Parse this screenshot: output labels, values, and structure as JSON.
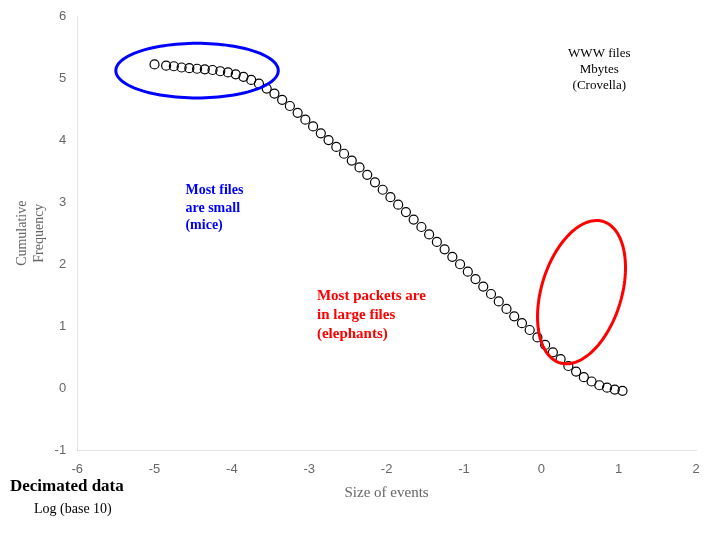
{
  "chart_data": {
    "type": "scatter",
    "x": [
      -5.0,
      -4.85,
      -4.75,
      -4.65,
      -4.55,
      -4.45,
      -4.35,
      -4.25,
      -4.15,
      -4.05,
      -3.95,
      -3.85,
      -3.75,
      -3.65,
      -3.55,
      -3.45,
      -3.35,
      -3.25,
      -3.15,
      -3.05,
      -2.95,
      -2.85,
      -2.75,
      -2.65,
      -2.55,
      -2.45,
      -2.35,
      -2.25,
      -2.15,
      -2.05,
      -1.95,
      -1.85,
      -1.75,
      -1.65,
      -1.55,
      -1.45,
      -1.35,
      -1.25,
      -1.15,
      -1.05,
      -0.95,
      -0.85,
      -0.75,
      -0.65,
      -0.55,
      -0.45,
      -0.35,
      -0.25,
      -0.15,
      -0.05,
      0.05,
      0.15,
      0.25,
      0.35,
      0.45,
      0.55,
      0.65,
      0.75,
      0.85,
      0.95,
      1.05
    ],
    "values": [
      5.22,
      5.2,
      5.19,
      5.17,
      5.16,
      5.15,
      5.14,
      5.13,
      5.11,
      5.09,
      5.06,
      5.02,
      4.97,
      4.91,
      4.83,
      4.75,
      4.65,
      4.55,
      4.44,
      4.33,
      4.22,
      4.11,
      4.0,
      3.89,
      3.78,
      3.67,
      3.56,
      3.44,
      3.32,
      3.2,
      3.08,
      2.96,
      2.84,
      2.72,
      2.6,
      2.48,
      2.36,
      2.24,
      2.12,
      2.0,
      1.88,
      1.76,
      1.64,
      1.52,
      1.4,
      1.28,
      1.16,
      1.05,
      0.94,
      0.82,
      0.7,
      0.58,
      0.47,
      0.36,
      0.27,
      0.18,
      0.11,
      0.05,
      0.01,
      -0.02,
      -0.04
    ],
    "color": "black",
    "marker": "circle",
    "xlim": [
      -6,
      2
    ],
    "ylim": [
      -1,
      6
    ],
    "xticks": [
      -6,
      -5,
      -4,
      -3,
      -2,
      -1,
      0,
      1,
      2
    ],
    "yticks": [
      -1,
      0,
      1,
      2,
      3,
      4,
      5,
      6
    ],
    "xlabel": "Size of events",
    "ylabel": "Cumulative\nFrequency",
    "grid": false,
    "annotations": [
      {
        "text": "WWW files\nMbytes\n(Crovella)"
      },
      {
        "text": "Most files\nare small\n(mice)",
        "color": "blue"
      },
      {
        "text": "Most packets are\nin large files\n(elephants)",
        "color": "red"
      },
      {
        "text": "Decimated data"
      },
      {
        "text": "Log (base 10)"
      }
    ]
  }
}
